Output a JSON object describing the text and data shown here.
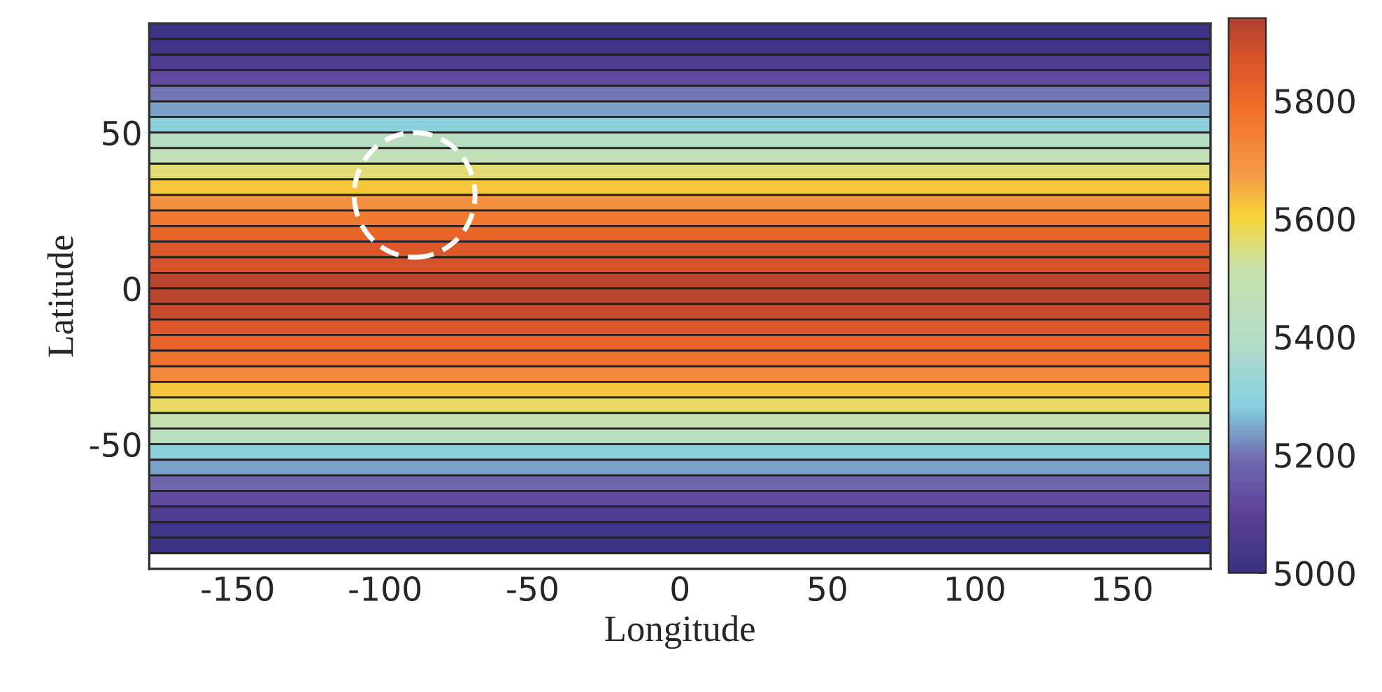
{
  "chart_data": {
    "type": "heatmap",
    "xlabel": "Longitude",
    "ylabel": "Latitude",
    "y": [
      82.5,
      77.5,
      72.5,
      67.5,
      62.5,
      57.5,
      52.5,
      47.5,
      42.5,
      37.5,
      32.5,
      27.5,
      22.5,
      17.5,
      12.5,
      7.5,
      2.5,
      -2.5,
      -7.5,
      -12.5,
      -17.5,
      -22.5,
      -27.5,
      -32.5,
      -37.5,
      -42.5,
      -47.5,
      -52.5,
      -57.5,
      -62.5,
      -67.5,
      -72.5,
      -77.5,
      -82.5
    ],
    "cells": [
      [
        5010
      ],
      [
        5020
      ],
      [
        5060
      ],
      [
        5120
      ],
      [
        5200
      ],
      [
        5240
      ],
      [
        5300
      ],
      [
        5420
      ],
      [
        5480
      ],
      [
        5560
      ],
      [
        5620
      ],
      [
        5700
      ],
      [
        5760
      ],
      [
        5820
      ],
      [
        5860
      ],
      [
        5880
      ],
      [
        5920
      ],
      [
        5920
      ],
      [
        5900
      ],
      [
        5860
      ],
      [
        5820
      ],
      [
        5780
      ],
      [
        5720
      ],
      [
        5620
      ],
      [
        5570
      ],
      [
        5500
      ],
      [
        5440
      ],
      [
        5300
      ],
      [
        5240
      ],
      [
        5180
      ],
      [
        5120
      ],
      [
        5060
      ],
      [
        5020
      ],
      [
        5010
      ]
    ],
    "xlim": [
      -180,
      180
    ],
    "ylim": [
      -90,
      85
    ],
    "xticks": [
      -150,
      -100,
      -50,
      0,
      50,
      100,
      150
    ],
    "yticks": [
      -50,
      0,
      50
    ],
    "clim": [
      5000,
      5940
    ],
    "cticks": [
      5000,
      5200,
      5400,
      5600,
      5800
    ]
  }
}
